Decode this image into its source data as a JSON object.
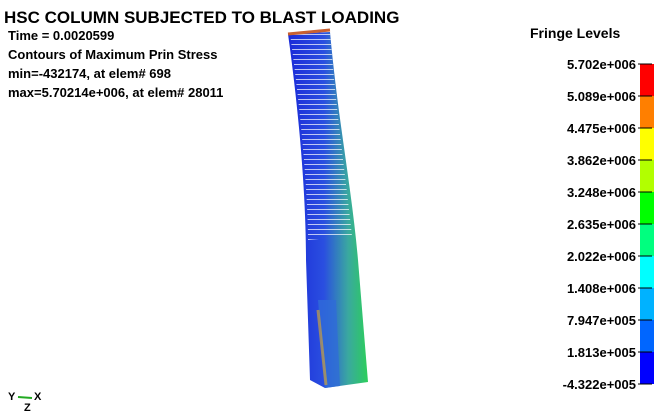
{
  "header": {
    "title": "HSC COLUMN SUBJECTED TO BLAST LOADING",
    "lines": [
      "Time =   0.0020599",
      "Contours of Maximum Prin Stress",
      " min=-432174, at elem# 698",
      " max=5.70214e+006, at elem# 28011"
    ]
  },
  "legend": {
    "title": "Fringe Levels",
    "levels": [
      "5.702e+006",
      "5.089e+006",
      "4.475e+006",
      "3.862e+006",
      "3.248e+006",
      "2.635e+006",
      "2.022e+006",
      "1.408e+006",
      "7.947e+005",
      "1.813e+005",
      "-4.322e+005"
    ],
    "colors": [
      "#ff0000",
      "#ff7f00",
      "#ffff00",
      "#b2ff00",
      "#00ff00",
      "#00ff7f",
      "#00ffff",
      "#00b2ff",
      "#0066ff",
      "#0000ff"
    ]
  },
  "triad": {
    "labels": [
      "Y",
      "X",
      "Z"
    ]
  }
}
